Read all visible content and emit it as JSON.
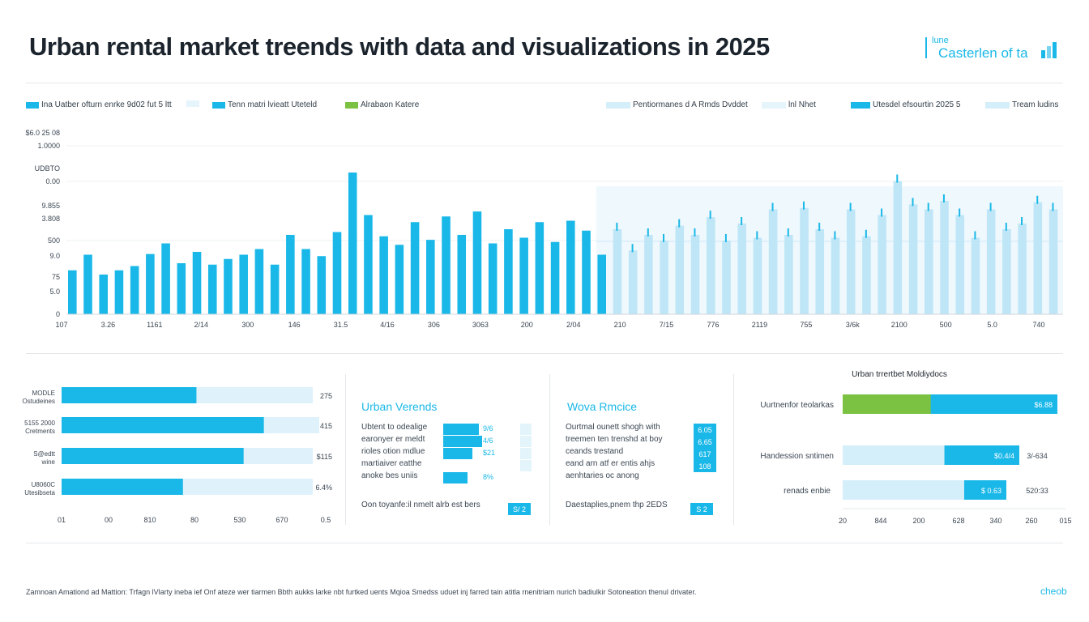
{
  "header": {
    "title": "Urban rental market treends with data and visualizations in 2025",
    "brand_line1": "lune",
    "brand_line2": "Casterlen of ta"
  },
  "colors": {
    "primary": "#1ab8e8",
    "light": "#d4eefa",
    "green": "#7cc242",
    "text": "#1e2a35"
  },
  "legend_left": [
    {
      "label": "Ina Uatber ofturn enrke 9d02 fut 5 ltt",
      "color": "#1ab8e8"
    },
    {
      "label": "",
      "color": "#e6f4fb"
    },
    {
      "label": "Tenn matri lvieatt Uteteld",
      "color": "#1ab8e8"
    },
    {
      "label": "Alrabaon Katere",
      "color": "#7cc242"
    }
  ],
  "legend_right": [
    {
      "label": "Pentiormanes d A Rmds Dvddet",
      "color": "#d4eefa"
    },
    {
      "label": "lnl Nhet",
      "color": "#e6f4fb"
    },
    {
      "label": "Utesdel efsourtin 2025 5",
      "color": "#1ab8e8"
    },
    {
      "label": "Tream ludins",
      "color": "#d4eefa"
    }
  ],
  "chart_data": [
    {
      "type": "bar",
      "title": "",
      "y_tick_labels": [
        "$6.0 25 08",
        "1.0000",
        "UDBTO",
        "0.00",
        "9.855",
        "3.808",
        "500",
        "9.0",
        "75",
        "5.0",
        "0"
      ],
      "x_tick_labels": [
        "107",
        "3.26",
        "1161",
        "2/14",
        "300",
        "146",
        "31.5",
        "4/16",
        "306",
        "3063",
        "200",
        "2/04",
        "210",
        "7/15",
        "776",
        "2119",
        "755",
        "3/6k",
        "2100",
        "500",
        "5.0",
        "740"
      ],
      "ylim": [
        0,
        240
      ],
      "series": [
        {
          "values": [
            62,
            84,
            56,
            62,
            68,
            85,
            100,
            72,
            88,
            70,
            78,
            84,
            92,
            70,
            112,
            92,
            82,
            116,
            200,
            140,
            110,
            98,
            130,
            105,
            138,
            112,
            145,
            100,
            120,
            108,
            130,
            102,
            132,
            118,
            84,
            120,
            90,
            112,
            104,
            125,
            112,
            137,
            104,
            128,
            108,
            148,
            112,
            150,
            120,
            108,
            148,
            110,
            140,
            188,
            155,
            148,
            160,
            140,
            108,
            148,
            120,
            128,
            158,
            148
          ]
        },
        {
          "values": [
            0,
            0,
            0,
            0,
            0,
            0,
            0,
            0,
            0,
            0,
            0,
            0,
            0,
            0,
            0,
            0,
            0,
            0,
            0,
            0,
            0,
            0,
            0,
            0,
            0,
            0,
            0,
            0,
            0,
            0,
            0,
            0,
            0,
            0,
            0,
            0,
            0,
            0,
            0,
            0,
            0,
            0,
            0,
            0,
            0,
            0,
            0,
            0,
            0,
            0,
            0,
            0,
            0,
            0,
            0,
            0,
            0,
            0,
            0,
            0,
            0,
            0,
            0,
            0
          ]
        }
      ]
    },
    {
      "type": "bar",
      "x_tick_labels": [
        "01",
        "00",
        "810",
        "80",
        "530",
        "670",
        "0.5"
      ],
      "categories": [
        "MODLE Ostudeines",
        "5155 2000 Cretments",
        "S@edtt wine",
        "U8060C Utesibseta"
      ],
      "values": [
        0.4,
        0.6,
        0.54,
        0.36
      ],
      "value_labels": [
        "275",
        "415",
        "$115",
        "6.4%"
      ]
    },
    {
      "type": "bar",
      "title": "Urban trrertbet Moldiydocs",
      "x_tick_labels": [
        "20",
        "844",
        "200",
        "628",
        "340",
        "260",
        "015"
      ],
      "categories": [
        "Uurtnenfor teolarkas",
        "Handession sntimen",
        "renads enbie"
      ],
      "values": [
        0.41,
        0.45,
        0.55
      ],
      "value_labels": [
        "$6.88",
        "$0.4/4",
        "$ 0.63"
      ],
      "side_labels": [
        "",
        "3/-634",
        "520:33"
      ]
    }
  ],
  "panel_mid1": {
    "title": "Urban Verends",
    "rows": [
      {
        "label": "Ubtent to odealige",
        "value": "9/6"
      },
      {
        "label": "earonyer er meldt",
        "value": "4/6"
      },
      {
        "label": "rioles otion mdlue",
        "value": "$21"
      },
      {
        "label": "martiaiver eatthe",
        "value": ""
      },
      {
        "label": "anoke bes uniis",
        "value": "8%"
      }
    ],
    "footer": "Oon toyanfe:il nmelt alrb est bers",
    "footer_tag": "S/ 2"
  },
  "panel_mid2": {
    "title": "Wova Rmcice",
    "rows": [
      {
        "label": "Ourtmal ounett shogh with",
        "tag": "6.05"
      },
      {
        "label": "treemen ten trenshd at boy",
        "tag": "6.65"
      },
      {
        "label": "ceands trestand",
        "tag": "617"
      },
      {
        "label": "eand arn atf er entis ahjs",
        "tag": "108"
      },
      {
        "label": "aenhtaries oc anong",
        "tag": ""
      }
    ],
    "footer": "Daestaplies,pnem thp 2EDS",
    "footer_tag": "S 2"
  },
  "footer": {
    "text": "Zamnoan Amationd ad Mattion: Trfagn lVlarty ineba ief Onf ateze wer tiarmen Bbth aukks larke nbt furtked uents Mqioa Smedss uduet inj farred tain atitla rnenitriam nurich badiulkir Sotoneation thenul drivater.",
    "right": "cheob"
  }
}
